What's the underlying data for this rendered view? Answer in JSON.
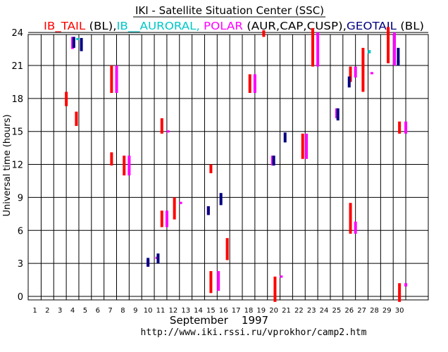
{
  "chart_data": {
    "type": "scatter",
    "title": "IKI - Satellite Situation Center (SSC)",
    "subtitle_parts": [
      {
        "text": "IB_TAIL ",
        "color": "#ff0000"
      },
      {
        "text": "(BL),",
        "color": "#000000"
      },
      {
        "text": "IB__AURORAL, ",
        "color": "#00c8c8"
      },
      {
        "text": "POLAR ",
        "color": "#ff00ff"
      },
      {
        "text": "(AUR,CAP,CUSP),",
        "color": "#000000"
      },
      {
        "text": "GEOTAIL ",
        "color": "#000080"
      },
      {
        "text": "(BL)",
        "color": "#000000"
      }
    ],
    "xlabel": "September    1997",
    "ylabel": "Universal time (hours)",
    "footer": "http://www.iki.rssi.ru/vprokhor/camp2.htm",
    "xlim": [
      1,
      31
    ],
    "ylim": [
      -0.5,
      24.5
    ],
    "x_ticks": [
      1,
      2,
      3,
      4,
      5,
      6,
      7,
      8,
      9,
      10,
      11,
      12,
      13,
      14,
      15,
      16,
      17,
      18,
      19,
      20,
      21,
      22,
      23,
      24,
      25,
      26,
      27,
      28,
      29,
      30
    ],
    "y_ticks": [
      0,
      3,
      6,
      9,
      12,
      15,
      18,
      21,
      24
    ],
    "colors": {
      "interball_tail": "#ff0000",
      "interball_auroral": "#00c8c8",
      "polar": "#ff00ff",
      "geotail": "#000080",
      "grid": "#000000"
    },
    "series": [
      {
        "name": "IB_TAIL",
        "color": "#ff0000",
        "intervals": [
          {
            "day": 3.5,
            "start": 17.3,
            "end": 18.6
          },
          {
            "day": 4.3,
            "start": 15.5,
            "end": 16.8
          },
          {
            "day": 7.1,
            "start": 18.5,
            "end": 21.0
          },
          {
            "day": 7.1,
            "start": 11.9,
            "end": 13.1
          },
          {
            "day": 8.1,
            "start": 11.0,
            "end": 12.8
          },
          {
            "day": 11.1,
            "start": 14.8,
            "end": 16.2
          },
          {
            "day": 11.1,
            "start": 6.3,
            "end": 7.8
          },
          {
            "day": 12.1,
            "start": 7.0,
            "end": 9.0
          },
          {
            "day": 15.0,
            "start": 0.3,
            "end": 2.3
          },
          {
            "day": 15.0,
            "start": 11.2,
            "end": 12.0
          },
          {
            "day": 16.3,
            "start": 3.3,
            "end": 5.3
          },
          {
            "day": 18.1,
            "start": 18.5,
            "end": 20.2
          },
          {
            "day": 19.2,
            "start": 23.6,
            "end": 24.2
          },
          {
            "day": 20.1,
            "start": -0.5,
            "end": 1.8
          },
          {
            "day": 22.3,
            "start": 12.5,
            "end": 14.8
          },
          {
            "day": 23.1,
            "start": 20.9,
            "end": 24.4
          },
          {
            "day": 26.1,
            "start": 5.7,
            "end": 8.5
          },
          {
            "day": 26.1,
            "start": 19.5,
            "end": 20.9
          },
          {
            "day": 27.1,
            "start": 18.6,
            "end": 22.6
          },
          {
            "day": 29.1,
            "start": 21.2,
            "end": 24.5
          },
          {
            "day": 30.0,
            "start": 14.8,
            "end": 15.9
          },
          {
            "day": 30.0,
            "start": -0.5,
            "end": 1.2
          }
        ]
      },
      {
        "name": "IB__AURORAL",
        "color": "#00c8c8",
        "intervals": [
          {
            "day": 4.4,
            "start": 23.3,
            "end": 23.5
          },
          {
            "day": 7.5,
            "start": 20.4,
            "end": 20.6
          },
          {
            "day": 27.6,
            "start": 22.1,
            "end": 22.4
          }
        ]
      },
      {
        "name": "POLAR",
        "color": "#ff00ff",
        "intervals": [
          {
            "day": 4.0,
            "start": 22.5,
            "end": 23.6
          },
          {
            "day": 7.5,
            "start": 18.5,
            "end": 21.0
          },
          {
            "day": 8.5,
            "start": 11.0,
            "end": 12.8
          },
          {
            "day": 11.5,
            "start": 6.3,
            "end": 7.8
          },
          {
            "day": 11.6,
            "start": 14.9,
            "end": 15.1
          },
          {
            "day": 12.6,
            "start": 8.4,
            "end": 8.6
          },
          {
            "day": 10.7,
            "start": 3.4,
            "end": 3.6
          },
          {
            "day": 10.0,
            "start": 2.7,
            "end": 3.3
          },
          {
            "day": 14.8,
            "start": 7.4,
            "end": 8.2
          },
          {
            "day": 15.6,
            "start": 0.5,
            "end": 2.3
          },
          {
            "day": 18.5,
            "start": 18.5,
            "end": 20.2
          },
          {
            "day": 19.9,
            "start": 11.9,
            "end": 12.8
          },
          {
            "day": 20.6,
            "start": 1.7,
            "end": 1.9
          },
          {
            "day": 22.6,
            "start": 12.5,
            "end": 14.8
          },
          {
            "day": 23.5,
            "start": 20.9,
            "end": 24.0
          },
          {
            "day": 25.0,
            "start": 16.2,
            "end": 17.1
          },
          {
            "day": 26.5,
            "start": 5.7,
            "end": 6.8
          },
          {
            "day": 26.5,
            "start": 19.9,
            "end": 20.9
          },
          {
            "day": 27.8,
            "start": 20.2,
            "end": 20.4
          },
          {
            "day": 29.6,
            "start": 21.0,
            "end": 24.0
          },
          {
            "day": 30.5,
            "start": 14.8,
            "end": 15.9
          },
          {
            "day": 30.5,
            "start": 0.9,
            "end": 1.2
          }
        ]
      },
      {
        "name": "GEOTAIL",
        "color": "#000080",
        "intervals": [
          {
            "day": 4.1,
            "start": 22.6,
            "end": 23.6
          },
          {
            "day": 4.7,
            "start": 22.3,
            "end": 23.5
          },
          {
            "day": 10.0,
            "start": 2.7,
            "end": 3.5
          },
          {
            "day": 10.8,
            "start": 3.0,
            "end": 3.9
          },
          {
            "day": 14.8,
            "start": 7.4,
            "end": 8.2
          },
          {
            "day": 15.8,
            "start": 8.3,
            "end": 9.4
          },
          {
            "day": 20.0,
            "start": 11.9,
            "end": 12.8
          },
          {
            "day": 20.9,
            "start": 14.0,
            "end": 14.9
          },
          {
            "day": 25.1,
            "start": 16.0,
            "end": 17.1
          },
          {
            "day": 26.0,
            "start": 19.0,
            "end": 20.0
          },
          {
            "day": 29.9,
            "start": 21.2,
            "end": 22.6
          },
          {
            "day": 29.9,
            "start": 21.0,
            "end": 21.5
          }
        ]
      }
    ]
  }
}
